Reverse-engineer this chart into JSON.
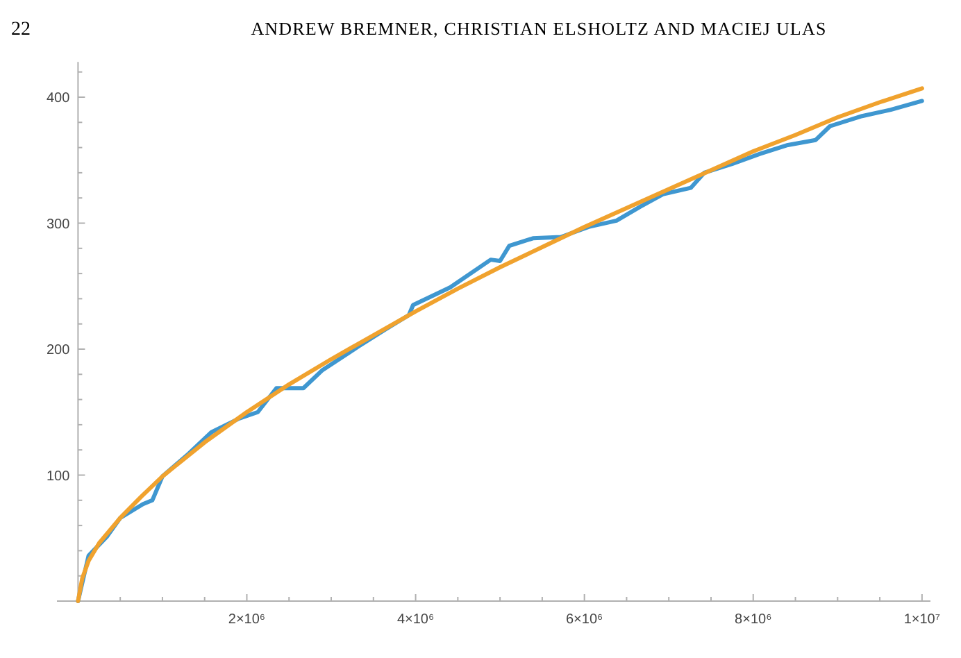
{
  "chart_data": {
    "type": "line",
    "annotations": [
      "22",
      "ANDREW BREMNER, CHRISTIAN ELSHOLTZ AND MACIEJ ULAS"
    ],
    "xlim": [
      -250000,
      10100000
    ],
    "ylim": [
      0,
      428
    ],
    "xticks": [
      {
        "value": 500000,
        "label": null
      },
      {
        "value": 1000000,
        "label": null
      },
      {
        "value": 1500000,
        "label": null
      },
      {
        "value": 2000000,
        "label": "2×10⁶"
      },
      {
        "value": 2500000,
        "label": null
      },
      {
        "value": 3000000,
        "label": null
      },
      {
        "value": 3500000,
        "label": null
      },
      {
        "value": 4000000,
        "label": "4×10⁶"
      },
      {
        "value": 4500000,
        "label": null
      },
      {
        "value": 5000000,
        "label": null
      },
      {
        "value": 5500000,
        "label": null
      },
      {
        "value": 6000000,
        "label": "6×10⁶"
      },
      {
        "value": 6500000,
        "label": null
      },
      {
        "value": 7000000,
        "label": null
      },
      {
        "value": 7500000,
        "label": null
      },
      {
        "value": 8000000,
        "label": "8×10⁶"
      },
      {
        "value": 8500000,
        "label": null
      },
      {
        "value": 9000000,
        "label": null
      },
      {
        "value": 9500000,
        "label": null
      },
      {
        "value": 10000000,
        "label": "1×10⁷"
      }
    ],
    "yticks": [
      {
        "value": 20,
        "label": null
      },
      {
        "value": 40,
        "label": null
      },
      {
        "value": 60,
        "label": null
      },
      {
        "value": 80,
        "label": null
      },
      100,
      {
        "value": 120,
        "label": null
      },
      {
        "value": 140,
        "label": null
      },
      {
        "value": 160,
        "label": null
      },
      {
        "value": 180,
        "label": null
      },
      200,
      {
        "value": 220,
        "label": null
      },
      {
        "value": 240,
        "label": null
      },
      {
        "value": 260,
        "label": null
      },
      {
        "value": 280,
        "label": null
      },
      300,
      {
        "value": 320,
        "label": null
      },
      {
        "value": 340,
        "label": null
      },
      {
        "value": 360,
        "label": null
      },
      {
        "value": 380,
        "label": null
      },
      400,
      {
        "value": 420,
        "label": null
      }
    ],
    "series": [
      {
        "color": "#3f97d0",
        "x": [
          0,
          125000,
          340000,
          500000,
          770000,
          880000,
          1000000,
          1310000,
          1580000,
          1910000,
          2130000,
          2350000,
          2670000,
          2890000,
          3320000,
          3650000,
          3920000,
          3970000,
          4410000,
          4890000,
          5000000,
          5110000,
          5390000,
          5720000,
          6050000,
          6380000,
          6660000,
          6930000,
          7260000,
          7420000,
          7750000,
          8080000,
          8410000,
          8740000,
          8910000,
          9290000,
          9630000,
          10000000
        ],
        "values": [
          0,
          36,
          51,
          66,
          77,
          80,
          99,
          117,
          134,
          145,
          150,
          169,
          169,
          183,
          202,
          216,
          227,
          235,
          249,
          271,
          270,
          282,
          288,
          289,
          297,
          302,
          313,
          323,
          328,
          340,
          347,
          355,
          362,
          366,
          377,
          385,
          390,
          397
        ]
      },
      {
        "color": "#f0a22e",
        "x": [
          0,
          50000,
          125000,
          250000,
          500000,
          750000,
          1000000,
          1500000,
          2000000,
          2500000,
          3000000,
          3500000,
          4000000,
          4500000,
          5000000,
          5500000,
          6000000,
          6500000,
          7000000,
          7500000,
          8000000,
          8500000,
          9000000,
          9500000,
          10000000
        ],
        "values": [
          0,
          18,
          32,
          46,
          66,
          83,
          99,
          126,
          150,
          172,
          192,
          211,
          230,
          248,
          265,
          281,
          297,
          312,
          327,
          342,
          357,
          370,
          384,
          396,
          407
        ]
      }
    ]
  }
}
